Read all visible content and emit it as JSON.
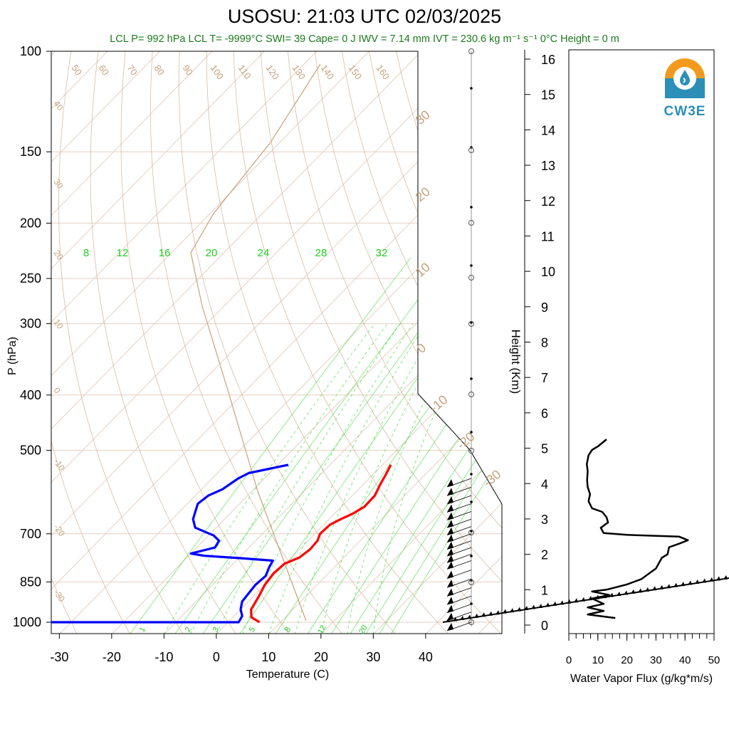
{
  "title": "USOSU: 21:03 UTC 02/03/2025",
  "subtitle": "LCL P= 992 hPa  LCL T= -9999°C  SWI= 39  Cape= 0 J  IWV = 7.14 mm  IVT = 230.6 kg m⁻¹ s⁻¹  0°C Height = 0 m",
  "logo": {
    "text": "CW3E",
    "colors": {
      "orange": "#f39a1e",
      "blue": "#2b8fb8"
    }
  },
  "colors": {
    "temperature": "#ff0000",
    "dewpoint": "#0000ff",
    "mixing_ratio": "#33dd33",
    "dry_adiabat": "#c8a07a",
    "isobar": "#e6cfc0"
  },
  "chart_data": [
    {
      "type": "line",
      "name": "skew-t",
      "xlabel": "Temperature (C)",
      "ylabel": "P (hPa)",
      "right_label": "Height (Km)",
      "x_ticks": [
        -30,
        -20,
        -10,
        0,
        10,
        20,
        30,
        40
      ],
      "y_ticks": [
        100,
        150,
        200,
        250,
        300,
        400,
        500,
        700,
        850,
        1000
      ],
      "height_ticks": [
        0,
        1,
        2,
        3,
        4,
        5,
        6,
        7,
        8,
        9,
        10,
        11,
        12,
        13,
        14,
        15,
        16
      ],
      "xlim": [
        -34,
        50
      ],
      "ylim": [
        1050,
        100
      ],
      "log_y": true,
      "mixing_ratio_labels": [
        "8",
        "12",
        "16",
        "20",
        "24",
        "28",
        "32"
      ],
      "mixing_ratio_bottom_labels": [
        "1",
        "2",
        "3",
        "5",
        "8",
        "12",
        "20"
      ],
      "dry_adiabat_labels_top": [
        "50",
        "60",
        "70",
        "80",
        "90",
        "100",
        "110",
        "120",
        "130",
        "140",
        "150",
        "160"
      ],
      "dry_adiabat_labels_left": [
        "40",
        "30",
        "20",
        "10",
        "0",
        "-10",
        "-20",
        "-30"
      ],
      "dry_adiabat_labels_right": [
        "30",
        "20",
        "10",
        "0",
        "-10",
        "-20",
        "-30"
      ],
      "series": [
        {
          "name": "Temperature",
          "points": [
            [
              6,
              1000
            ],
            [
              3.5,
              980
            ],
            [
              2,
              950
            ],
            [
              1,
              900
            ],
            [
              0,
              860
            ],
            [
              -0.5,
              820
            ],
            [
              -0.2,
              790
            ],
            [
              1.5,
              770
            ],
            [
              2,
              745
            ],
            [
              1.8,
              720
            ],
            [
              1,
              700
            ],
            [
              1.2,
              675
            ],
            [
              2.2,
              660
            ],
            [
              3.5,
              645
            ],
            [
              4.4,
              628
            ],
            [
              4.3,
              600
            ],
            [
              3.3,
              575
            ],
            [
              2.5,
              552
            ],
            [
              1.6,
              530
            ]
          ]
        },
        {
          "name": "Dewpoint",
          "points": [
            [
              -34,
              1000
            ],
            [
              -20,
              1000
            ],
            [
              2,
              1000
            ],
            [
              1.5,
              975
            ],
            [
              0,
              950
            ],
            [
              -1.2,
              920
            ],
            [
              -1.5,
              890
            ],
            [
              -1.8,
              860
            ],
            [
              -1.5,
              830
            ],
            [
              -2.5,
              800
            ],
            [
              -3,
              780
            ],
            [
              -10,
              772
            ],
            [
              -17,
              765
            ],
            [
              -20,
              758
            ],
            [
              -16.5,
              740
            ],
            [
              -17,
              720
            ],
            [
              -19,
              705
            ],
            [
              -24,
              683
            ],
            [
              -26,
              660
            ],
            [
              -27,
              640
            ],
            [
              -28,
              620
            ],
            [
              -27.5,
              600
            ],
            [
              -26,
              585
            ],
            [
              -25,
              560
            ],
            [
              -24,
              548
            ],
            [
              -18,
              530
            ]
          ]
        }
      ],
      "wind_barbs_hpa": [
        1000,
        960,
        930,
        900,
        870,
        840,
        810,
        780,
        760,
        740,
        720,
        700,
        680,
        660,
        640,
        620,
        600,
        580,
        560
      ]
    },
    {
      "type": "line",
      "name": "water vapor flux",
      "xlabel": "Water Vapor Flux (g/kg*m/s)",
      "x_ticks": [
        0,
        10,
        20,
        30,
        40,
        50
      ],
      "xlim": [
        0,
        50
      ],
      "ylim_km": [
        -0.3,
        16.3
      ],
      "series": [
        {
          "name": "flux",
          "points": [
            [
              16,
              0.2
            ],
            [
              6.5,
              0.3
            ],
            [
              12,
              0.4
            ],
            [
              6.5,
              0.5
            ],
            [
              12,
              0.6
            ],
            [
              8,
              0.75
            ],
            [
              14,
              0.85
            ],
            [
              8,
              0.95
            ],
            [
              13,
              1.0
            ],
            [
              20,
              1.15
            ],
            [
              25,
              1.3
            ],
            [
              30,
              1.6
            ],
            [
              32,
              1.9
            ],
            [
              34,
              2.0
            ],
            [
              34.5,
              2.2
            ],
            [
              38,
              2.3
            ],
            [
              41,
              2.4
            ],
            [
              38,
              2.5
            ],
            [
              20,
              2.55
            ],
            [
              12,
              2.6
            ],
            [
              11,
              2.75
            ],
            [
              13.5,
              2.9
            ],
            [
              13,
              3.05
            ],
            [
              11.5,
              3.2
            ],
            [
              8,
              3.3
            ],
            [
              6.8,
              3.5
            ],
            [
              7.3,
              3.7
            ],
            [
              6.5,
              3.9
            ],
            [
              6.3,
              4.1
            ],
            [
              6.5,
              4.35
            ],
            [
              6.2,
              4.55
            ],
            [
              6.8,
              4.8
            ],
            [
              8,
              4.95
            ],
            [
              10,
              5.05
            ],
            [
              13,
              5.25
            ]
          ]
        }
      ]
    }
  ]
}
